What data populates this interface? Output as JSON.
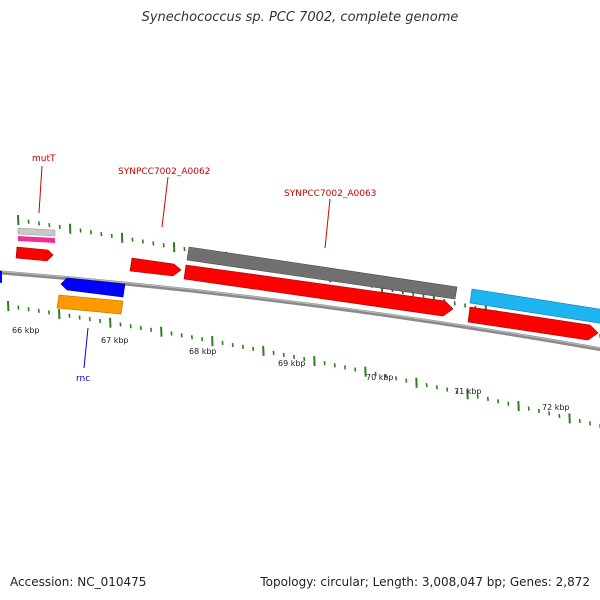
{
  "title": "Synechococcus sp. PCC 7002, complete genome",
  "footer": {
    "accession": "Accession: NC_010475",
    "info": "Topology: circular; Length: 3,008,047 bp; Genes: 2,872"
  },
  "colors": {
    "backbone": "#8a8a8a",
    "tick": "#2e7d1e",
    "red": "#ff0000",
    "blue": "#0000ff",
    "orange": "#ff9900",
    "gray": "#707070",
    "cyan": "#1eb4f0",
    "pink": "#f0309a",
    "silver": "#c8c8c8",
    "label_red": "#cc0000",
    "label_blue": "#0000cc"
  },
  "kbp_labels": [
    "66 kbp",
    "67 kbp",
    "68 kbp",
    "69 kbp",
    "70 kbp",
    "71 kbp",
    "72 kbp"
  ],
  "gene_labels": {
    "mutT": "mutT",
    "a0062": "SYNPCC7002_A0062",
    "a0063": "SYNPCC7002_A0063",
    "rnc": "rnc"
  }
}
